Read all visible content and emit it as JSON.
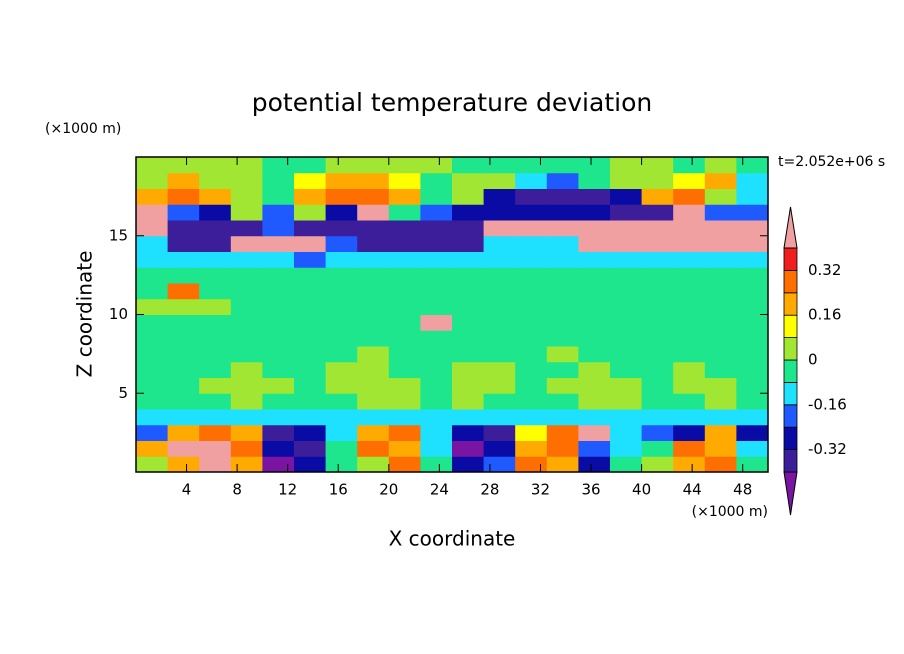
{
  "chart_data": {
    "type": "contour",
    "title": "potential temperature deviation",
    "x_label": "X coordinate",
    "y_label": "Z coordinate",
    "x_unit": "(×1000 m)",
    "y_unit": "(×1000 m)",
    "time_label": "t=2.052e+06 s",
    "xlim": [
      0,
      50
    ],
    "ylim": [
      0,
      20
    ],
    "xticks": [
      4,
      8,
      12,
      16,
      20,
      24,
      28,
      32,
      36,
      40,
      44,
      48
    ],
    "yticks": [
      5,
      10,
      15
    ],
    "levels": [
      -0.4,
      -0.32,
      -0.24,
      -0.16,
      -0.08,
      0,
      0.08,
      0.16,
      0.24,
      0.32,
      0.4
    ],
    "colors": [
      "#7a14a3",
      "#3c1e9b",
      "#0a0aa5",
      "#1e5aff",
      "#1ee1ff",
      "#1ee68c",
      "#a0e632",
      "#ffff00",
      "#ffaa00",
      "#ff6e00",
      "#f01e1e",
      "#f0a0a0"
    ],
    "colorbar_ticks": [
      -0.32,
      -0.16,
      0,
      0.16,
      0.32
    ],
    "x": [
      1.25,
      3.75,
      6.25,
      8.75,
      11.25,
      13.75,
      16.25,
      18.75,
      21.25,
      23.75,
      26.25,
      28.75,
      31.25,
      33.75,
      36.25,
      38.75,
      41.25,
      43.75,
      46.25,
      48.75
    ],
    "y": [
      0.5,
      1.5,
      2.5,
      3.5,
      4.5,
      5.5,
      6.5,
      7.5,
      8.5,
      9.5,
      10.5,
      11.5,
      12.5,
      13.5,
      14.5,
      15.5,
      16.5,
      17.5,
      18.5,
      19.5
    ],
    "z": [
      [
        0.04,
        0.2,
        0.44,
        0.2,
        -0.44,
        -0.28,
        -0.04,
        0.04,
        0.28,
        -0.04,
        -0.28,
        -0.2,
        0.28,
        0.2,
        -0.28,
        -0.04,
        0.04,
        0.2,
        0.28,
        -0.04
      ],
      [
        0.2,
        0.44,
        0.44,
        0.28,
        -0.28,
        -0.36,
        -0.04,
        0.28,
        0.2,
        -0.12,
        -0.44,
        -0.28,
        0.2,
        0.28,
        -0.2,
        -0.12,
        -0.04,
        0.28,
        0.2,
        -0.12
      ],
      [
        -0.2,
        0.2,
        0.28,
        0.2,
        -0.36,
        -0.28,
        -0.12,
        0.2,
        0.28,
        -0.12,
        -0.28,
        -0.36,
        0.12,
        0.28,
        0.44,
        -0.12,
        -0.2,
        -0.28,
        0.2,
        -0.28
      ],
      [
        -0.12,
        -0.12,
        -0.12,
        -0.12,
        -0.12,
        -0.12,
        -0.12,
        -0.12,
        -0.12,
        -0.12,
        -0.12,
        -0.12,
        -0.12,
        -0.12,
        -0.12,
        -0.12,
        -0.12,
        -0.12,
        -0.12,
        -0.12
      ],
      [
        -0.04,
        -0.04,
        -0.04,
        0.04,
        -0.04,
        -0.04,
        -0.04,
        0.04,
        0.04,
        -0.04,
        0.04,
        -0.04,
        -0.04,
        -0.04,
        0.04,
        0.04,
        -0.04,
        -0.04,
        0.04,
        -0.04
      ],
      [
        -0.04,
        -0.04,
        0.04,
        0.04,
        0.04,
        -0.04,
        0.04,
        0.04,
        0.04,
        -0.04,
        0.04,
        0.04,
        -0.04,
        0.04,
        0.04,
        0.04,
        -0.04,
        0.04,
        0.04,
        -0.04
      ],
      [
        -0.04,
        -0.04,
        -0.04,
        0.04,
        -0.04,
        -0.04,
        0.04,
        0.04,
        -0.04,
        -0.04,
        0.04,
        0.04,
        -0.04,
        -0.04,
        0.04,
        -0.04,
        -0.04,
        0.04,
        -0.04,
        -0.04
      ],
      [
        -0.04,
        -0.04,
        -0.04,
        -0.04,
        -0.04,
        -0.04,
        -0.04,
        0.04,
        -0.04,
        -0.04,
        -0.04,
        -0.04,
        -0.04,
        0.04,
        -0.04,
        -0.04,
        -0.04,
        -0.04,
        -0.04,
        -0.04
      ],
      [
        -0.04,
        -0.04,
        -0.04,
        -0.04,
        -0.04,
        -0.04,
        -0.04,
        -0.04,
        -0.04,
        -0.04,
        -0.04,
        -0.04,
        -0.04,
        -0.04,
        -0.04,
        -0.04,
        -0.04,
        -0.04,
        -0.04,
        -0.04
      ],
      [
        -0.04,
        -0.04,
        -0.04,
        -0.04,
        -0.04,
        -0.04,
        -0.04,
        -0.04,
        -0.04,
        0.44,
        -0.04,
        -0.04,
        -0.04,
        -0.04,
        -0.04,
        -0.04,
        -0.04,
        -0.04,
        -0.04,
        -0.04
      ],
      [
        0.04,
        0.04,
        0.04,
        -0.04,
        -0.04,
        -0.04,
        -0.04,
        -0.04,
        -0.04,
        -0.04,
        -0.04,
        -0.04,
        -0.04,
        -0.04,
        -0.04,
        -0.04,
        -0.04,
        -0.04,
        -0.04,
        -0.04
      ],
      [
        -0.04,
        0.28,
        -0.04,
        -0.04,
        -0.04,
        -0.04,
        -0.04,
        -0.04,
        -0.04,
        -0.04,
        -0.04,
        -0.04,
        -0.04,
        -0.04,
        -0.04,
        -0.04,
        -0.04,
        -0.04,
        -0.04,
        -0.04
      ],
      [
        -0.04,
        -0.04,
        -0.04,
        -0.04,
        -0.04,
        -0.04,
        -0.04,
        -0.04,
        -0.04,
        -0.04,
        -0.04,
        -0.04,
        -0.04,
        -0.04,
        -0.04,
        -0.04,
        -0.04,
        -0.04,
        -0.04,
        -0.04
      ],
      [
        -0.12,
        -0.12,
        -0.12,
        -0.12,
        -0.12,
        -0.2,
        -0.12,
        -0.12,
        -0.12,
        -0.12,
        -0.12,
        -0.12,
        -0.12,
        -0.12,
        -0.12,
        -0.12,
        -0.12,
        -0.12,
        -0.12,
        -0.12
      ],
      [
        -0.12,
        -0.36,
        -0.36,
        0.44,
        0.44,
        0.44,
        -0.2,
        -0.36,
        -0.36,
        -0.36,
        -0.36,
        -0.12,
        -0.12,
        -0.12,
        0.44,
        0.44,
        0.44,
        0.44,
        0.44,
        0.44
      ],
      [
        0.44,
        -0.36,
        -0.36,
        -0.36,
        -0.2,
        -0.36,
        -0.36,
        -0.36,
        -0.36,
        -0.36,
        -0.36,
        0.44,
        0.44,
        0.44,
        0.44,
        0.44,
        0.44,
        0.44,
        0.44,
        0.44
      ],
      [
        0.44,
        -0.2,
        -0.28,
        0.04,
        -0.2,
        0.04,
        -0.28,
        0.44,
        -0.04,
        -0.2,
        -0.28,
        -0.28,
        -0.28,
        -0.28,
        -0.28,
        -0.36,
        -0.36,
        0.44,
        -0.2,
        -0.2
      ],
      [
        0.2,
        0.28,
        0.2,
        0.04,
        -0.04,
        0.2,
        0.28,
        0.28,
        0.2,
        -0.04,
        0.04,
        -0.28,
        -0.36,
        -0.36,
        -0.36,
        -0.28,
        0.2,
        0.28,
        0.04,
        -0.12
      ],
      [
        0.04,
        0.2,
        0.04,
        0.04,
        -0.04,
        0.12,
        0.2,
        0.2,
        0.12,
        -0.04,
        0.04,
        0.04,
        -0.12,
        -0.2,
        -0.04,
        0.04,
        0.04,
        0.12,
        0.2,
        -0.12
      ],
      [
        0.04,
        0.04,
        0.04,
        0.04,
        -0.04,
        -0.04,
        0.04,
        0.04,
        0.04,
        0.04,
        -0.04,
        -0.04,
        -0.04,
        -0.04,
        -0.04,
        0.04,
        0.04,
        -0.04,
        0.04,
        -0.04
      ]
    ]
  }
}
